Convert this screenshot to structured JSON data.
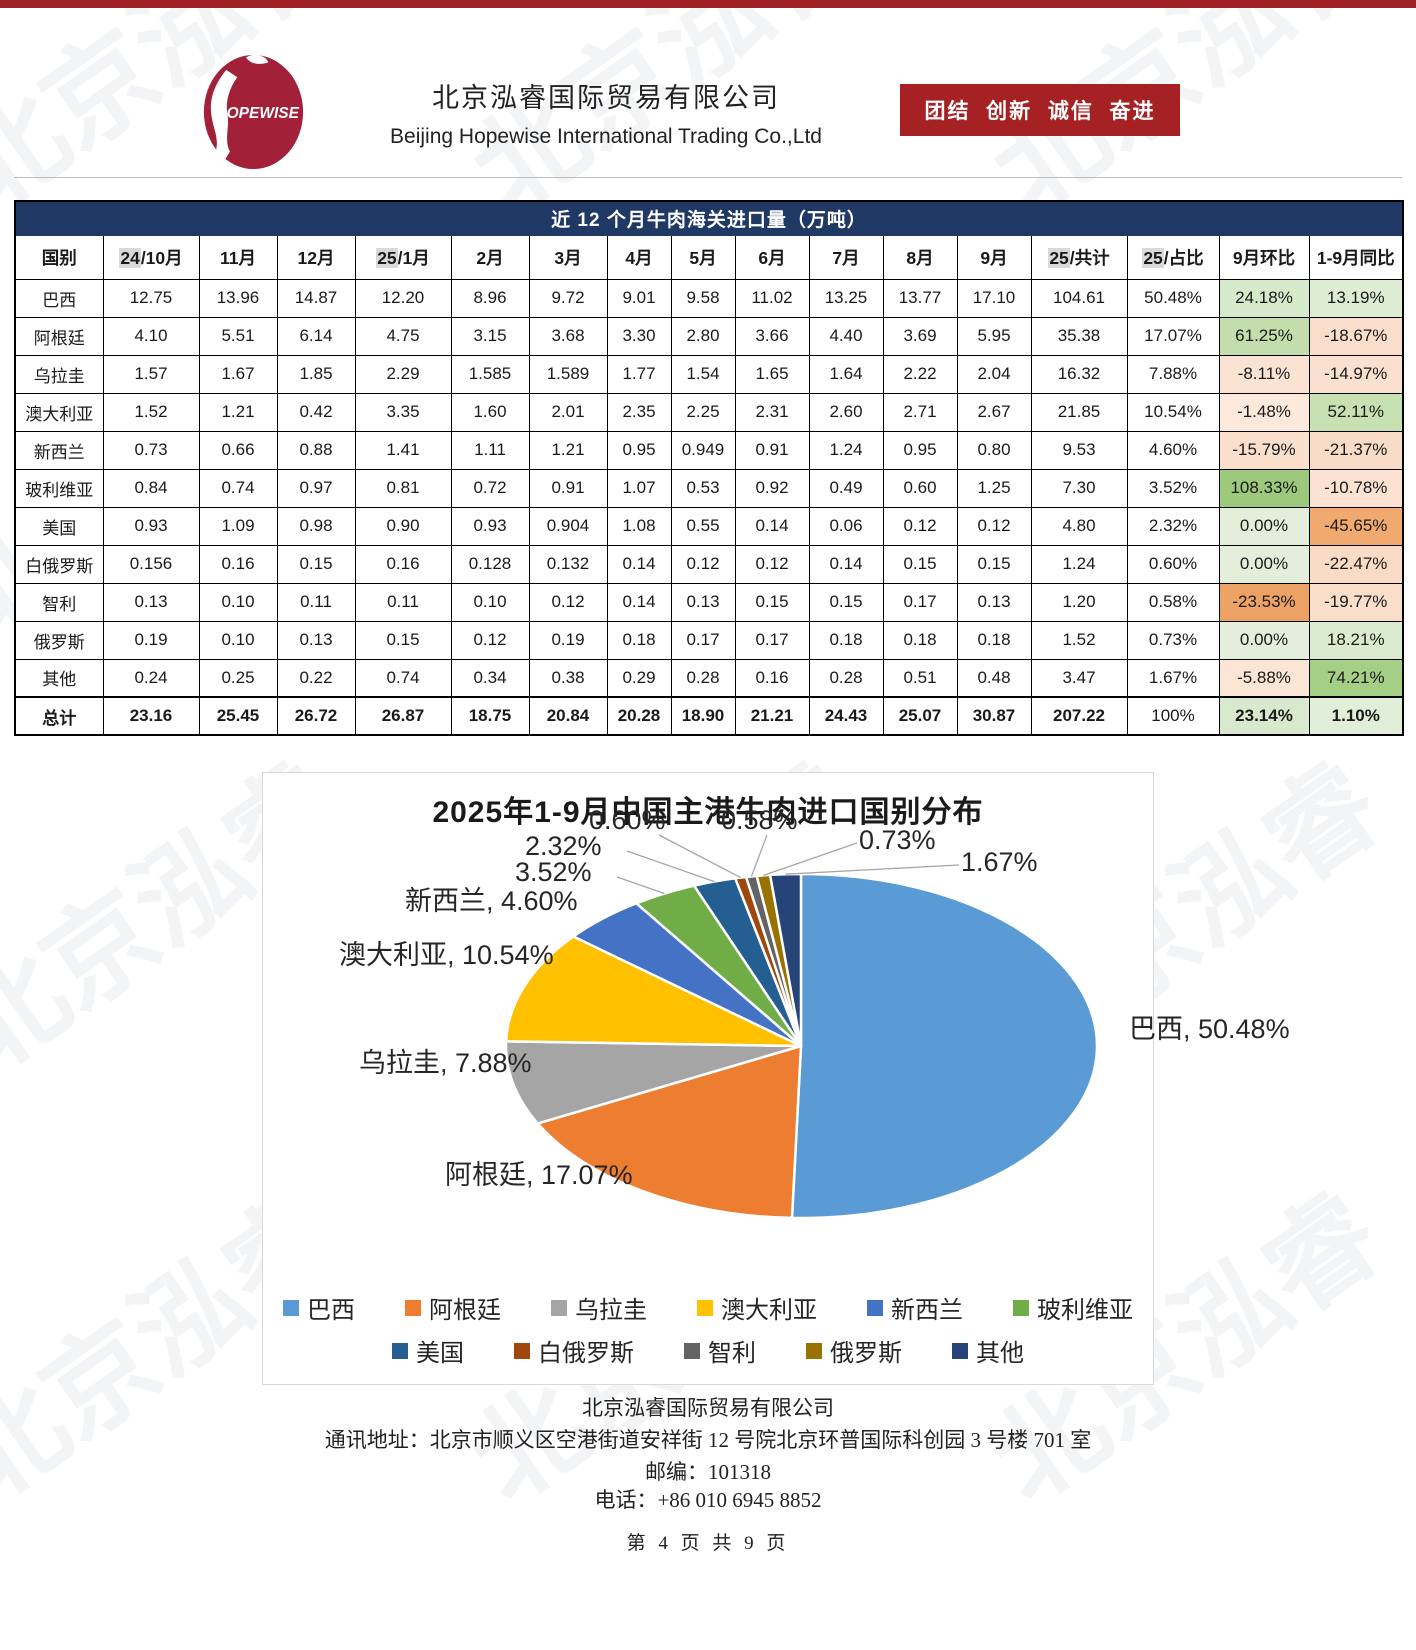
{
  "watermark": "北京泓睿",
  "header": {
    "logo_text": "HOPEWISE",
    "company_cn": "北京泓睿国际贸易有限公司",
    "company_en": "Beijing Hopewise International Trading Co.,Ltd",
    "slogan": "团结  创新  诚信  奋进",
    "banner_color": "#A62123"
  },
  "table": {
    "title": "近 12 个月牛肉海关进口量（万吨）",
    "title_bg": "#1F3864",
    "columns": [
      {
        "text": "国别"
      },
      {
        "hl": "24",
        "text": "/10月"
      },
      {
        "text": "11月"
      },
      {
        "text": "12月"
      },
      {
        "hl": "25",
        "text": "/1月"
      },
      {
        "text": "2月"
      },
      {
        "text": "3月"
      },
      {
        "text": "4月"
      },
      {
        "text": "5月"
      },
      {
        "text": "6月"
      },
      {
        "text": "7月"
      },
      {
        "text": "8月"
      },
      {
        "text": "9月"
      },
      {
        "hl": "25",
        "text": "/共计"
      },
      {
        "hl": "25",
        "text": "/占比"
      },
      {
        "text": "9月环比"
      },
      {
        "text": "1-9月同比"
      }
    ],
    "rows": [
      {
        "country": "巴西",
        "values": [
          "12.75",
          "13.96",
          "14.87",
          "12.20",
          "8.96",
          "9.72",
          "9.01",
          "9.58",
          "11.02",
          "13.25",
          "13.77",
          "17.10"
        ],
        "total": "104.61",
        "share": "50.48%",
        "mom": "24.18%",
        "mom_bg": "#D7E9CB",
        "yoy": "13.19%",
        "yoy_bg": "#DDECD2"
      },
      {
        "country": "阿根廷",
        "values": [
          "4.10",
          "5.51",
          "6.14",
          "4.75",
          "3.15",
          "3.68",
          "3.30",
          "2.80",
          "3.66",
          "4.40",
          "3.69",
          "5.95"
        ],
        "total": "35.38",
        "share": "17.07%",
        "mom": "61.25%",
        "mom_bg": "#C3DEAC",
        "yoy": "-18.67%",
        "yoy_bg": "#FADECB"
      },
      {
        "country": "乌拉圭",
        "values": [
          "1.57",
          "1.67",
          "1.85",
          "2.29",
          "1.585",
          "1.589",
          "1.77",
          "1.54",
          "1.65",
          "1.64",
          "2.22",
          "2.04"
        ],
        "total": "16.32",
        "share": "7.88%",
        "mom": "-8.11%",
        "mom_bg": "#FBE3D3",
        "yoy": "-14.97%",
        "yoy_bg": "#FAE0CE"
      },
      {
        "country": "澳大利亚",
        "values": [
          "1.52",
          "1.21",
          "0.42",
          "3.35",
          "1.60",
          "2.01",
          "2.35",
          "2.25",
          "2.31",
          "2.60",
          "2.71",
          "2.67"
        ],
        "total": "21.85",
        "share": "10.54%",
        "mom": "-1.48%",
        "mom_bg": "#FCE9DB",
        "yoy": "52.11%",
        "yoy_bg": "#C8E1B3"
      },
      {
        "country": "新西兰",
        "values": [
          "0.73",
          "0.66",
          "0.88",
          "1.41",
          "1.11",
          "1.21",
          "0.95",
          "0.949",
          "0.91",
          "1.24",
          "0.95",
          "0.80"
        ],
        "total": "9.53",
        "share": "4.60%",
        "mom": "-15.79%",
        "mom_bg": "#FADFCD",
        "yoy": "-21.37%",
        "yoy_bg": "#F9DCC8"
      },
      {
        "country": "玻利维亚",
        "values": [
          "0.84",
          "0.74",
          "0.97",
          "0.81",
          "0.72",
          "0.91",
          "1.07",
          "0.53",
          "0.92",
          "0.49",
          "0.60",
          "1.25"
        ],
        "total": "7.30",
        "share": "3.52%",
        "mom": "108.33%",
        "mom_bg": "#9CC97C",
        "yoy": "-10.78%",
        "yoy_bg": "#FBE2D1"
      },
      {
        "country": "美国",
        "values": [
          "0.93",
          "1.09",
          "0.98",
          "0.90",
          "0.93",
          "0.904",
          "1.08",
          "0.55",
          "0.14",
          "0.06",
          "0.12",
          "0.12"
        ],
        "total": "4.80",
        "share": "2.32%",
        "mom": "0.00%",
        "mom_bg": "#E3EFDA",
        "yoy": "-45.65%",
        "yoy_bg": "#F0A96F"
      },
      {
        "country": "白俄罗斯",
        "values": [
          "0.156",
          "0.16",
          "0.15",
          "0.16",
          "0.128",
          "0.132",
          "0.14",
          "0.12",
          "0.12",
          "0.14",
          "0.15",
          "0.15"
        ],
        "total": "1.24",
        "share": "0.60%",
        "mom": "0.00%",
        "mom_bg": "#E3EFDA",
        "yoy": "-22.47%",
        "yoy_bg": "#F9DBC6"
      },
      {
        "country": "智利",
        "values": [
          "0.13",
          "0.10",
          "0.11",
          "0.11",
          "0.10",
          "0.12",
          "0.14",
          "0.13",
          "0.15",
          "0.15",
          "0.17",
          "0.13"
        ],
        "total": "1.20",
        "share": "0.58%",
        "mom": "-23.53%",
        "mom_bg": "#ECA264",
        "yoy": "-19.77%",
        "yoy_bg": "#F9DECA"
      },
      {
        "country": "俄罗斯",
        "values": [
          "0.19",
          "0.10",
          "0.13",
          "0.15",
          "0.12",
          "0.19",
          "0.18",
          "0.17",
          "0.17",
          "0.18",
          "0.18",
          "0.18"
        ],
        "total": "1.52",
        "share": "0.73%",
        "mom": "0.00%",
        "mom_bg": "#E3EFDA",
        "yoy": "18.21%",
        "yoy_bg": "#DBEBD0"
      },
      {
        "country": "其他",
        "values": [
          "0.24",
          "0.25",
          "0.22",
          "0.74",
          "0.34",
          "0.38",
          "0.29",
          "0.28",
          "0.16",
          "0.28",
          "0.51",
          "0.48"
        ],
        "total": "3.47",
        "share": "1.67%",
        "mom": "-5.88%",
        "mom_bg": "#FBE5D5",
        "yoy": "74.21%",
        "yoy_bg": "#A6CF86"
      }
    ],
    "total_row": {
      "country": "总计",
      "values": [
        "23.16",
        "25.45",
        "26.72",
        "26.87",
        "18.75",
        "20.84",
        "20.28",
        "18.90",
        "21.21",
        "24.43",
        "25.07",
        "30.87"
      ],
      "total": "207.22",
      "share": "100%",
      "mom": "23.14%",
      "mom_bg": "#D8E9CD",
      "yoy": "1.10%",
      "yoy_bg": "#E1EED8"
    }
  },
  "chart_data": {
    "type": "pie",
    "title": "2025年1-9月中国主港牛肉进口国别分布",
    "unit": "%",
    "legend_position": "bottom",
    "slices": [
      {
        "name": "巴西",
        "value": 50.48,
        "color": "#5B9BD5",
        "label": "巴西, 50.48%"
      },
      {
        "name": "阿根廷",
        "value": 17.07,
        "color": "#ED7D31",
        "label": "阿根廷, 17.07%"
      },
      {
        "name": "乌拉圭",
        "value": 7.88,
        "color": "#A5A5A5",
        "label": "乌拉圭, 7.88%"
      },
      {
        "name": "澳大利亚",
        "value": 10.54,
        "color": "#FFC000",
        "label": "澳大利亚, 10.54%"
      },
      {
        "name": "新西兰",
        "value": 4.6,
        "color": "#4472C4",
        "label": "新西兰, 4.60%"
      },
      {
        "name": "玻利维亚",
        "value": 3.52,
        "color": "#70AD47",
        "label": "3.52%"
      },
      {
        "name": "美国",
        "value": 2.32,
        "color": "#255E91",
        "label": "2.32%"
      },
      {
        "name": "白俄罗斯",
        "value": 0.6,
        "color": "#9E480E",
        "label": "0.60%"
      },
      {
        "name": "智利",
        "value": 0.58,
        "color": "#636363",
        "label": "0.58%"
      },
      {
        "name": "俄罗斯",
        "value": 0.73,
        "color": "#997300",
        "label": "0.73%"
      },
      {
        "name": "其他",
        "value": 1.67,
        "color": "#264478",
        "label": "1.67%"
      }
    ],
    "legend_rows": [
      [
        "巴西",
        "阿根廷",
        "乌拉圭",
        "澳大利亚",
        "新西兰",
        "玻利维亚"
      ],
      [
        "美国",
        "白俄罗斯",
        "智利",
        "俄罗斯",
        "其他"
      ]
    ]
  },
  "footer": {
    "company": "北京泓睿国际贸易有限公司",
    "address": "通讯地址：北京市顺义区空港街道安祥街 12 号院北京环普国际科创园 3 号楼 701 室",
    "postal": "邮编：101318",
    "phone": "电话：+86 010 6945 8852",
    "page": "第 4 页 共 9 页"
  }
}
